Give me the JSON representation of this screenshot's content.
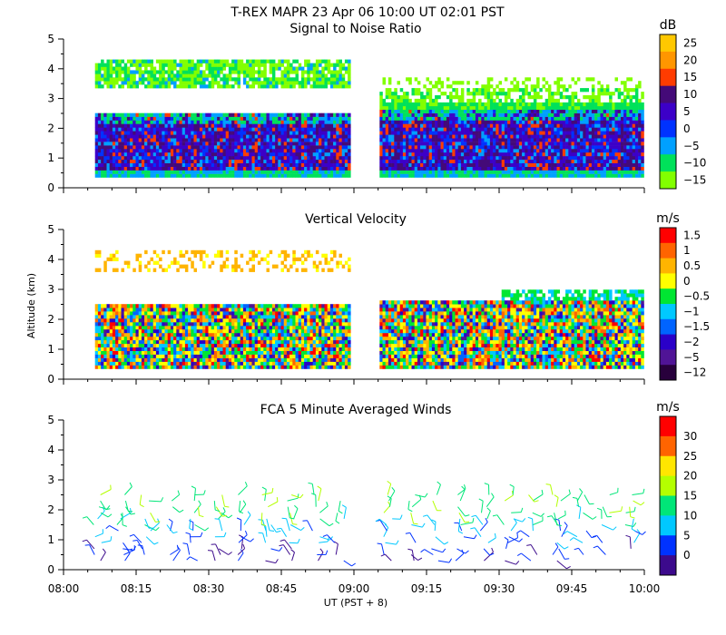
{
  "figure": {
    "title": "T-REX  MAPR 23 Apr 06  10:00 UT  02:01  PST",
    "ylabel": "Altitude (km)",
    "xlabel": "UT  (PST + 8)",
    "xticks": [
      "08:00",
      "08:15",
      "08:30",
      "08:45",
      "09:00",
      "09:15",
      "09:30",
      "09:45",
      "10:00"
    ]
  },
  "chart_data": [
    {
      "type": "heatmap",
      "title": "Signal to Noise Ratio",
      "xlabel": "UT  (PST + 8)",
      "ylabel": "Altitude (km)",
      "x_range": [
        "08:00",
        "10:00"
      ],
      "ylim": [
        0,
        5
      ],
      "yticks": [
        0,
        1,
        2,
        3,
        4,
        5
      ],
      "colorbar": {
        "unit": "dB",
        "levels": [
          "25",
          "20",
          "15",
          "10",
          "5",
          "0",
          "−5",
          "−10",
          "−15"
        ],
        "colors": [
          "#ffc800",
          "#ff9600",
          "#ff3c00",
          "#440a78",
          "#3c00c8",
          "#0032ff",
          "#00a0ff",
          "#00e15a",
          "#82ff00"
        ]
      },
      "data_gap": [
        "08:59",
        "09:05"
      ]
    },
    {
      "type": "heatmap",
      "title": "Vertical Velocity",
      "xlabel": "UT  (PST + 8)",
      "ylabel": "Altitude (km)",
      "x_range": [
        "08:00",
        "10:00"
      ],
      "ylim": [
        0,
        5
      ],
      "yticks": [
        0,
        1,
        2,
        3,
        4,
        5
      ],
      "colorbar": {
        "unit": "m/s",
        "levels": [
          "1.5",
          "1",
          "0.5",
          "0",
          "−0.5",
          "−1",
          "−1.5",
          "−2",
          "−5",
          "−12"
        ],
        "colors": [
          "#ff0000",
          "#ff6400",
          "#ffb400",
          "#ffff00",
          "#00e632",
          "#00c8ff",
          "#0064ff",
          "#2a00c8",
          "#501496",
          "#28003c"
        ]
      },
      "data_gap": [
        "08:59",
        "09:05"
      ]
    },
    {
      "type": "scatter",
      "title": "FCA 5 Minute Averaged Winds",
      "xlabel": "UT  (PST + 8)",
      "ylabel": "Altitude (km)",
      "x_range": [
        "08:00",
        "10:00"
      ],
      "ylim": [
        0,
        5
      ],
      "yticks": [
        0,
        1,
        2,
        3,
        4,
        5
      ],
      "colorbar": {
        "unit": "m/s",
        "levels": [
          "30",
          "25",
          "20",
          "15",
          "10",
          "5",
          "0"
        ],
        "colors": [
          "#ff0000",
          "#ff6400",
          "#ffe600",
          "#b4ff00",
          "#00e678",
          "#00c8ff",
          "#0032ff",
          "#3c0a8c"
        ]
      }
    }
  ]
}
